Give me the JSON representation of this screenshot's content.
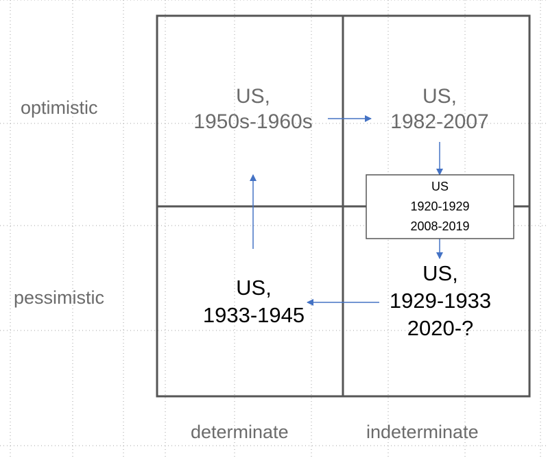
{
  "rows": {
    "top": "optimistic",
    "bottom": "pessimistic"
  },
  "columns": {
    "left": "determinate",
    "right": "indeterminate"
  },
  "quadrants": {
    "top_left": [
      "US,",
      "1950s-1960s"
    ],
    "top_right": [
      "US,",
      "1982-2007"
    ],
    "bottom_left": [
      "US,",
      "1933-1945"
    ],
    "bottom_right": [
      "US,",
      "1929-1933",
      "2020-?"
    ]
  },
  "transition_box": [
    "US",
    "1920-1929",
    "2008-2019"
  ],
  "colors": {
    "grid": "#555555",
    "arrow": "#4472c4",
    "dots": "#a0a0a0"
  }
}
